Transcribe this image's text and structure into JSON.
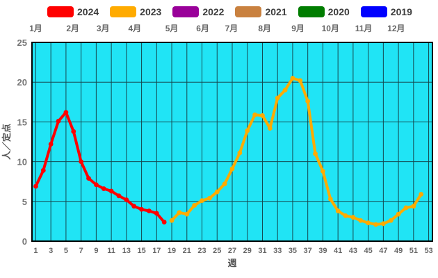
{
  "legend": {
    "items": [
      {
        "label": "2024",
        "color": "#ff0000"
      },
      {
        "label": "2023",
        "color": "#ffab00"
      },
      {
        "label": "2022",
        "color": "#990099"
      },
      {
        "label": "2021",
        "color": "#c9813f"
      },
      {
        "label": "2020",
        "color": "#007d00"
      },
      {
        "label": "2019",
        "color": "#0000ff"
      }
    ]
  },
  "chart_data": {
    "type": "line",
    "title": "",
    "xlabel": "週",
    "ylabel": "人／定点",
    "plot_bg": "#20e4f5",
    "grid_color": "#15464e",
    "x_axis": {
      "min": 1,
      "max": 53,
      "ticks": [
        1,
        3,
        5,
        7,
        9,
        11,
        13,
        15,
        17,
        19,
        21,
        23,
        25,
        27,
        29,
        31,
        33,
        35,
        37,
        39,
        41,
        43,
        45,
        47,
        49,
        51,
        53
      ]
    },
    "y_axis": {
      "min": 0,
      "max": 25,
      "ticks": [
        0,
        5,
        10,
        15,
        20,
        25
      ]
    },
    "month_labels": [
      {
        "label": "1月",
        "week": 1.0
      },
      {
        "label": "2月",
        "week": 5.9
      },
      {
        "label": "3月",
        "week": 9.9
      },
      {
        "label": "4月",
        "week": 14.1
      },
      {
        "label": "5月",
        "week": 19.0
      },
      {
        "label": "6月",
        "week": 23.1
      },
      {
        "label": "7月",
        "week": 26.9
      },
      {
        "label": "8月",
        "week": 31.3
      },
      {
        "label": "9月",
        "week": 35.7
      },
      {
        "label": "10月",
        "week": 40.0
      },
      {
        "label": "11月",
        "week": 44.4
      },
      {
        "label": "12月",
        "week": 48.7
      }
    ],
    "series": [
      {
        "name": "2024",
        "color": "#ff0000",
        "start_week": 1,
        "values": [
          6.9,
          8.9,
          12.2,
          15.1,
          16.2,
          13.8,
          10.0,
          7.9,
          7.1,
          6.6,
          6.3,
          5.7,
          5.2,
          4.4,
          4.0,
          3.8,
          3.5,
          2.4
        ]
      },
      {
        "name": "2023",
        "color": "#ffab00",
        "start_week": 19,
        "values": [
          2.6,
          3.6,
          3.4,
          4.5,
          5.1,
          5.4,
          6.2,
          7.2,
          9.1,
          11.1,
          13.9,
          15.9,
          15.8,
          14.2,
          18.0,
          19.0,
          20.5,
          20.2,
          17.6,
          11.0,
          8.8,
          5.3,
          3.8,
          3.2,
          3.0,
          2.6,
          2.3,
          2.1,
          2.2,
          2.6,
          3.4,
          4.2,
          4.4,
          5.9
        ]
      }
    ]
  }
}
